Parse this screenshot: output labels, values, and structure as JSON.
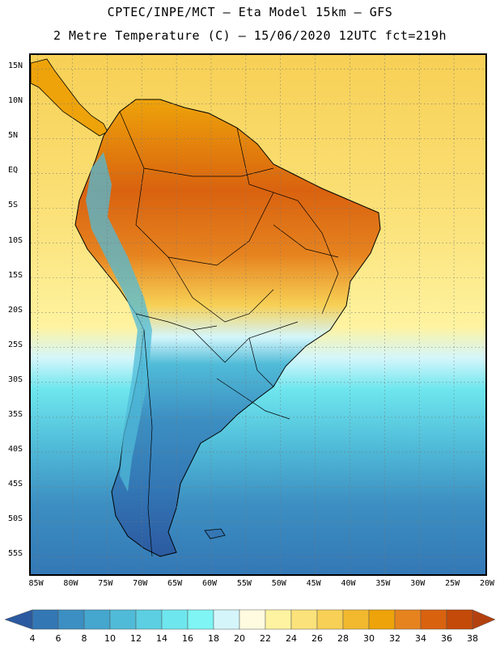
{
  "header": {
    "title_line1": "CPTEC/INPE/MCT –  Eta Model 15km – GFS",
    "title_line2": "2 Metre Temperature (C) – 15/06/2020 12UTC fct=219h"
  },
  "map": {
    "lat_ticks": [
      "15N",
      "10N",
      "5N",
      "EQ",
      "5S",
      "10S",
      "15S",
      "20S",
      "25S",
      "30S",
      "35S",
      "40S",
      "45S",
      "50S",
      "55S"
    ],
    "lon_ticks": [
      "85W",
      "80W",
      "75W",
      "70W",
      "65W",
      "60W",
      "55W",
      "50W",
      "45W",
      "40W",
      "35W",
      "30W",
      "25W",
      "20W"
    ],
    "lat_range": [
      17,
      -58
    ],
    "lon_range": [
      -86,
      -20
    ]
  },
  "colorbar": {
    "labels": [
      "4",
      "6",
      "8",
      "10",
      "12",
      "14",
      "16",
      "18",
      "20",
      "22",
      "24",
      "26",
      "28",
      "30",
      "32",
      "34",
      "36",
      "38"
    ],
    "colors": [
      "#2b5aa0",
      "#3377b5",
      "#3c8fc2",
      "#45a6ce",
      "#50bbd8",
      "#5ccfe2",
      "#6ee6ee",
      "#7ff5f5",
      "#d4f6fb",
      "#fffbe0",
      "#fef3a0",
      "#fbe27a",
      "#f7d055",
      "#f2b92f",
      "#eea30a",
      "#e6831f",
      "#d9620f",
      "#c44a09",
      "#b3410f"
    ]
  }
}
